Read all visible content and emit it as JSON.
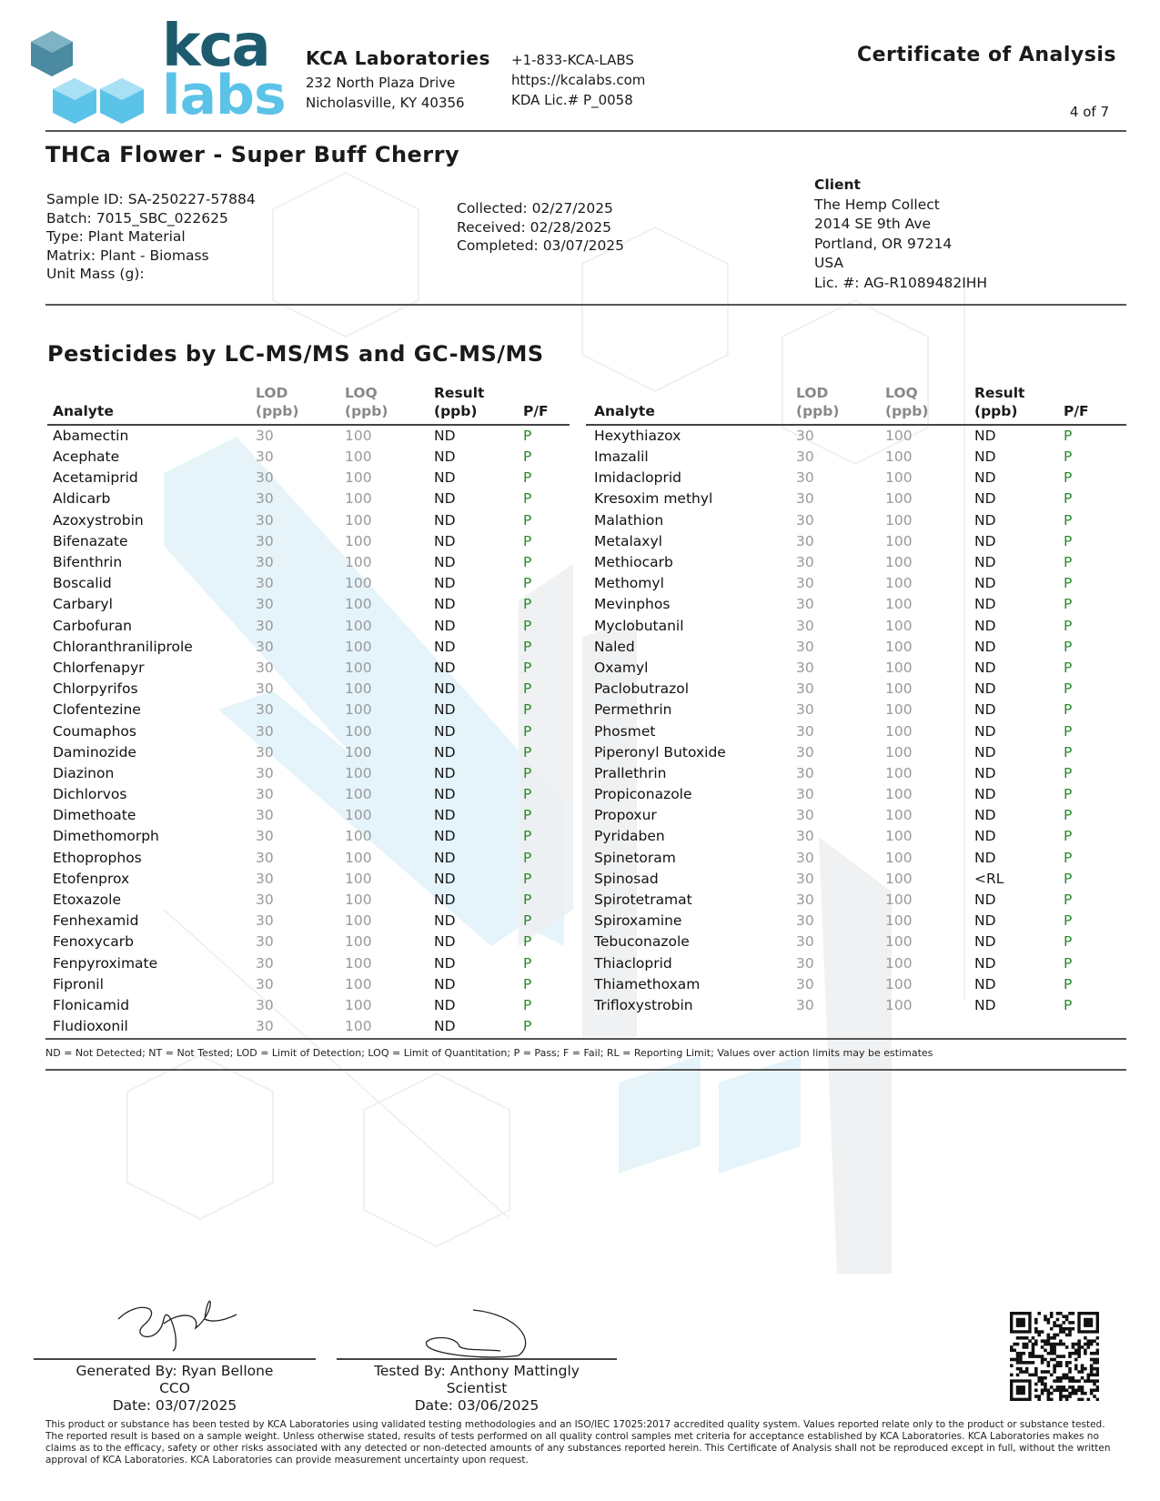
{
  "lab": {
    "logo_text_top": "kca",
    "logo_text_bottom": "labs",
    "name": "KCA Laboratories",
    "address_line1": "232 North Plaza Drive",
    "address_line2": "Nicholasville, KY 40356",
    "phone": "+1-833-KCA-LABS",
    "website": "https://kcalabs.com",
    "license": "KDA Lic.# P_0058"
  },
  "document": {
    "title": "Certificate of Analysis",
    "page": "4 of 7"
  },
  "product": {
    "title": "THCa Flower - Super Buff Cherry"
  },
  "sample": {
    "sample_id": "Sample ID: SA-250227-57884",
    "batch": "Batch: 7015_SBC_022625",
    "type": "Type: Plant Material",
    "matrix": "Matrix: Plant - Biomass",
    "unit_mass": "Unit Mass (g):",
    "collected": "Collected: 02/27/2025",
    "received": "Received: 02/28/2025",
    "completed": "Completed: 03/07/2025"
  },
  "client": {
    "heading": "Client",
    "name": "The Hemp Collect",
    "street": "2014 SE 9th Ave",
    "city": "Portland, OR 97214",
    "country": "USA",
    "license": "Lic. #: AG-R1089482IHH"
  },
  "section": {
    "title": "Pesticides by LC-MS/MS and GC-MS/MS"
  },
  "table": {
    "headers": {
      "analyte": "Analyte",
      "lod": "LOD",
      "lod_unit": "(ppb)",
      "loq": "LOQ",
      "loq_unit": "(ppb)",
      "result": "Result",
      "result_unit": "(ppb)",
      "pf": "P/F"
    },
    "left_rows": [
      [
        "Abamectin",
        "30",
        "100",
        "ND",
        "P"
      ],
      [
        "Acephate",
        "30",
        "100",
        "ND",
        "P"
      ],
      [
        "Acetamiprid",
        "30",
        "100",
        "ND",
        "P"
      ],
      [
        "Aldicarb",
        "30",
        "100",
        "ND",
        "P"
      ],
      [
        "Azoxystrobin",
        "30",
        "100",
        "ND",
        "P"
      ],
      [
        "Bifenazate",
        "30",
        "100",
        "ND",
        "P"
      ],
      [
        "Bifenthrin",
        "30",
        "100",
        "ND",
        "P"
      ],
      [
        "Boscalid",
        "30",
        "100",
        "ND",
        "P"
      ],
      [
        "Carbaryl",
        "30",
        "100",
        "ND",
        "P"
      ],
      [
        "Carbofuran",
        "30",
        "100",
        "ND",
        "P"
      ],
      [
        "Chloranthraniliprole",
        "30",
        "100",
        "ND",
        "P"
      ],
      [
        "Chlorfenapyr",
        "30",
        "100",
        "ND",
        "P"
      ],
      [
        "Chlorpyrifos",
        "30",
        "100",
        "ND",
        "P"
      ],
      [
        "Clofentezine",
        "30",
        "100",
        "ND",
        "P"
      ],
      [
        "Coumaphos",
        "30",
        "100",
        "ND",
        "P"
      ],
      [
        "Daminozide",
        "30",
        "100",
        "ND",
        "P"
      ],
      [
        "Diazinon",
        "30",
        "100",
        "ND",
        "P"
      ],
      [
        "Dichlorvos",
        "30",
        "100",
        "ND",
        "P"
      ],
      [
        "Dimethoate",
        "30",
        "100",
        "ND",
        "P"
      ],
      [
        "Dimethomorph",
        "30",
        "100",
        "ND",
        "P"
      ],
      [
        "Ethoprophos",
        "30",
        "100",
        "ND",
        "P"
      ],
      [
        "Etofenprox",
        "30",
        "100",
        "ND",
        "P"
      ],
      [
        "Etoxazole",
        "30",
        "100",
        "ND",
        "P"
      ],
      [
        "Fenhexamid",
        "30",
        "100",
        "ND",
        "P"
      ],
      [
        "Fenoxycarb",
        "30",
        "100",
        "ND",
        "P"
      ],
      [
        "Fenpyroximate",
        "30",
        "100",
        "ND",
        "P"
      ],
      [
        "Fipronil",
        "30",
        "100",
        "ND",
        "P"
      ],
      [
        "Flonicamid",
        "30",
        "100",
        "ND",
        "P"
      ],
      [
        "Fludioxonil",
        "30",
        "100",
        "ND",
        "P"
      ]
    ],
    "right_rows": [
      [
        "Hexythiazox",
        "30",
        "100",
        "ND",
        "P"
      ],
      [
        "Imazalil",
        "30",
        "100",
        "ND",
        "P"
      ],
      [
        "Imidacloprid",
        "30",
        "100",
        "ND",
        "P"
      ],
      [
        "Kresoxim methyl",
        "30",
        "100",
        "ND",
        "P"
      ],
      [
        "Malathion",
        "30",
        "100",
        "ND",
        "P"
      ],
      [
        "Metalaxyl",
        "30",
        "100",
        "ND",
        "P"
      ],
      [
        "Methiocarb",
        "30",
        "100",
        "ND",
        "P"
      ],
      [
        "Methomyl",
        "30",
        "100",
        "ND",
        "P"
      ],
      [
        "Mevinphos",
        "30",
        "100",
        "ND",
        "P"
      ],
      [
        "Myclobutanil",
        "30",
        "100",
        "ND",
        "P"
      ],
      [
        "Naled",
        "30",
        "100",
        "ND",
        "P"
      ],
      [
        "Oxamyl",
        "30",
        "100",
        "ND",
        "P"
      ],
      [
        "Paclobutrazol",
        "30",
        "100",
        "ND",
        "P"
      ],
      [
        "Permethrin",
        "30",
        "100",
        "ND",
        "P"
      ],
      [
        "Phosmet",
        "30",
        "100",
        "ND",
        "P"
      ],
      [
        "Piperonyl Butoxide",
        "30",
        "100",
        "ND",
        "P"
      ],
      [
        "Prallethrin",
        "30",
        "100",
        "ND",
        "P"
      ],
      [
        "Propiconazole",
        "30",
        "100",
        "ND",
        "P"
      ],
      [
        "Propoxur",
        "30",
        "100",
        "ND",
        "P"
      ],
      [
        "Pyridaben",
        "30",
        "100",
        "ND",
        "P"
      ],
      [
        "Spinetoram",
        "30",
        "100",
        "ND",
        "P"
      ],
      [
        "Spinosad",
        "30",
        "100",
        "<RL",
        "P"
      ],
      [
        "Spirotetramat",
        "30",
        "100",
        "ND",
        "P"
      ],
      [
        "Spiroxamine",
        "30",
        "100",
        "ND",
        "P"
      ],
      [
        "Tebuconazole",
        "30",
        "100",
        "ND",
        "P"
      ],
      [
        "Thiacloprid",
        "30",
        "100",
        "ND",
        "P"
      ],
      [
        "Thiamethoxam",
        "30",
        "100",
        "ND",
        "P"
      ],
      [
        "Trifloxystrobin",
        "30",
        "100",
        "ND",
        "P"
      ]
    ]
  },
  "legend": "ND = Not Detected; NT = Not Tested; LOD = Limit of Detection; LOQ = Limit of Quantitation; P = Pass; F = Fail; RL = Reporting Limit; Values over action limits may be estimates",
  "signatures": [
    {
      "line1": "Generated By: Ryan Bellone",
      "line2": "CCO",
      "line3": "Date: 03/07/2025"
    },
    {
      "line1": "Tested By: Anthony Mattingly",
      "line2": "Scientist",
      "line3": "Date: 03/06/2025"
    }
  ],
  "disclaimer": "This product or substance has been tested by KCA Laboratories using validated testing methodologies and an ISO/IEC 17025:2017 accredited quality system. Values reported relate only to the product or substance tested. The reported result is based on a sample weight. Unless otherwise stated, results of tests performed on all quality control samples met criteria for acceptance established by KCA Laboratories. KCA Laboratories makes no claims as to the efficacy, safety or other risks associated with any detected or non-detected amounts of any substances reported herein. This Certificate of Analysis shall not be reproduced except in full, without the written approval of KCA Laboratories. KCA Laboratories can provide measurement uncertainty upon request.",
  "colors": {
    "brand_dark": "#1d5b6e",
    "brand_light": "#5cc3e8",
    "pass": "#2a8a2a",
    "watermark": "#e6f4fa"
  }
}
